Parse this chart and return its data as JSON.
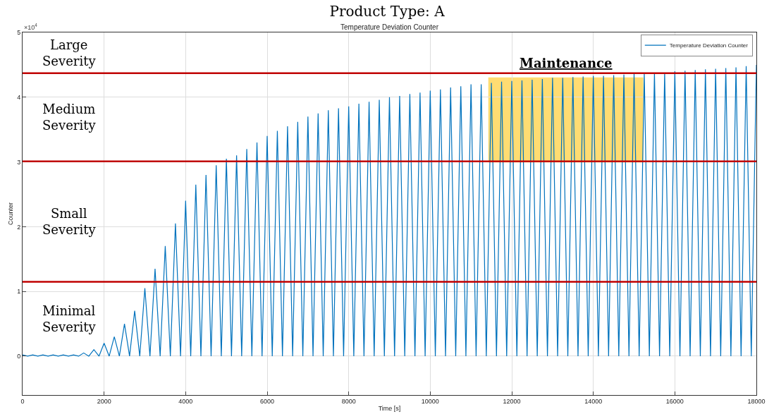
{
  "chart_data": {
    "type": "line",
    "title": "Product Type: A",
    "subtitle": "Temperature Deviation Counter",
    "xlabel": "Time [s]",
    "ylabel": "Counter",
    "x": [
      0,
      125,
      250,
      375,
      500,
      625,
      750,
      875,
      1000,
      1125,
      1250,
      1375,
      1500,
      1625,
      1750,
      1875,
      2000,
      2125,
      2250,
      2375,
      2500,
      2625,
      2750,
      2875,
      3000,
      3125,
      3250,
      3375,
      3500,
      3625,
      3750,
      3875,
      4000,
      4125,
      4250,
      4375,
      4500,
      4625,
      4750,
      4875,
      5000,
      5125,
      5250,
      5375,
      5500,
      5625,
      5750,
      5875,
      6000,
      6125,
      6250,
      6375,
      6500,
      6625,
      6750,
      6875,
      7000,
      7125,
      7250,
      7375,
      7500,
      7625,
      7750,
      7875,
      8000,
      8125,
      8250,
      8375,
      8500,
      8625,
      8750,
      8875,
      9000,
      9125,
      9250,
      9375,
      9500,
      9625,
      9750,
      9875,
      10000,
      10125,
      10250,
      10375,
      10500,
      10625,
      10750,
      10875,
      11000,
      11125,
      11250,
      11375,
      11500,
      11625,
      11750,
      11875,
      12000,
      12125,
      12250,
      12375,
      12500,
      12625,
      12750,
      12875,
      13000,
      13125,
      13250,
      13375,
      13500,
      13625,
      13750,
      13875,
      14000,
      14125,
      14250,
      14375,
      14500,
      14625,
      14750,
      14875,
      15000,
      15125,
      15250,
      15375,
      15500,
      15625,
      15750,
      15875,
      16000,
      16125,
      16250,
      16375,
      16500,
      16625,
      16750,
      16875,
      17000,
      17125,
      17250,
      17375,
      17500,
      17625,
      17750,
      17875,
      18000
    ],
    "series": [
      {
        "name": "Temperature Deviation Counter",
        "color": "#0072bd",
        "values": [
          0.02,
          0,
          0.02,
          0,
          0.02,
          0,
          0.02,
          0,
          0.02,
          0,
          0.02,
          0,
          0.05,
          0,
          0.1,
          0,
          0.2,
          0,
          0.3,
          0,
          0.5,
          0,
          0.7,
          0,
          1.05,
          0,
          1.35,
          0,
          1.7,
          0,
          2.05,
          0,
          2.4,
          0,
          2.65,
          0,
          2.8,
          0,
          2.95,
          0,
          3.05,
          0,
          3.1,
          0,
          3.2,
          0,
          3.3,
          0,
          3.4,
          0,
          3.48,
          0,
          3.55,
          0,
          3.62,
          0,
          3.7,
          0,
          3.75,
          0,
          3.8,
          0,
          3.83,
          0,
          3.86,
          0,
          3.9,
          0,
          3.93,
          0,
          3.96,
          0,
          4.0,
          0,
          4.02,
          0,
          4.05,
          0,
          4.07,
          0,
          4.1,
          0,
          4.12,
          0,
          4.15,
          0,
          4.17,
          0,
          4.2,
          0,
          4.2,
          0,
          4.22,
          0,
          4.24,
          0,
          4.25,
          0,
          4.26,
          0,
          4.27,
          0,
          4.28,
          0,
          4.3,
          0,
          4.3,
          0,
          4.31,
          0,
          4.32,
          0,
          4.33,
          0,
          4.33,
          0,
          4.34,
          0,
          4.35,
          0,
          4.36,
          0,
          4.37,
          0,
          4.38,
          0,
          4.38,
          0,
          4.4,
          0,
          4.41,
          0,
          4.42,
          0,
          4.43,
          0,
          4.44,
          0,
          4.45,
          0,
          4.46,
          0,
          4.48,
          0,
          4.5
        ]
      }
    ],
    "xlim": [
      0,
      18000
    ],
    "xticks": [
      0,
      2000,
      4000,
      6000,
      8000,
      10000,
      12000,
      14000,
      16000,
      18000
    ],
    "ylim": [
      -0.6,
      5.0
    ],
    "yticks": [
      0,
      1,
      2,
      3,
      4,
      5
    ],
    "ref_lines": [
      {
        "axis": "y",
        "value": 4.37,
        "label": null,
        "color": "#c00000"
      },
      {
        "axis": "y",
        "value": 3.01,
        "label": null,
        "color": "#c00000"
      },
      {
        "axis": "y",
        "value": 1.15,
        "label": null,
        "color": "#c00000"
      }
    ],
    "bands": [
      {
        "axis": "x",
        "from": 11450,
        "to": 15200,
        "label": "Maintenance",
        "color": "#ffc000"
      }
    ],
    "annotations": [
      "×10$^{4}$",
      "Large Severity",
      "Medium Severity",
      "Small Severity",
      "Minimal Severity"
    ],
    "grid": true,
    "legend": "top right",
    "marker": "none",
    "line_style": "solid"
  }
}
